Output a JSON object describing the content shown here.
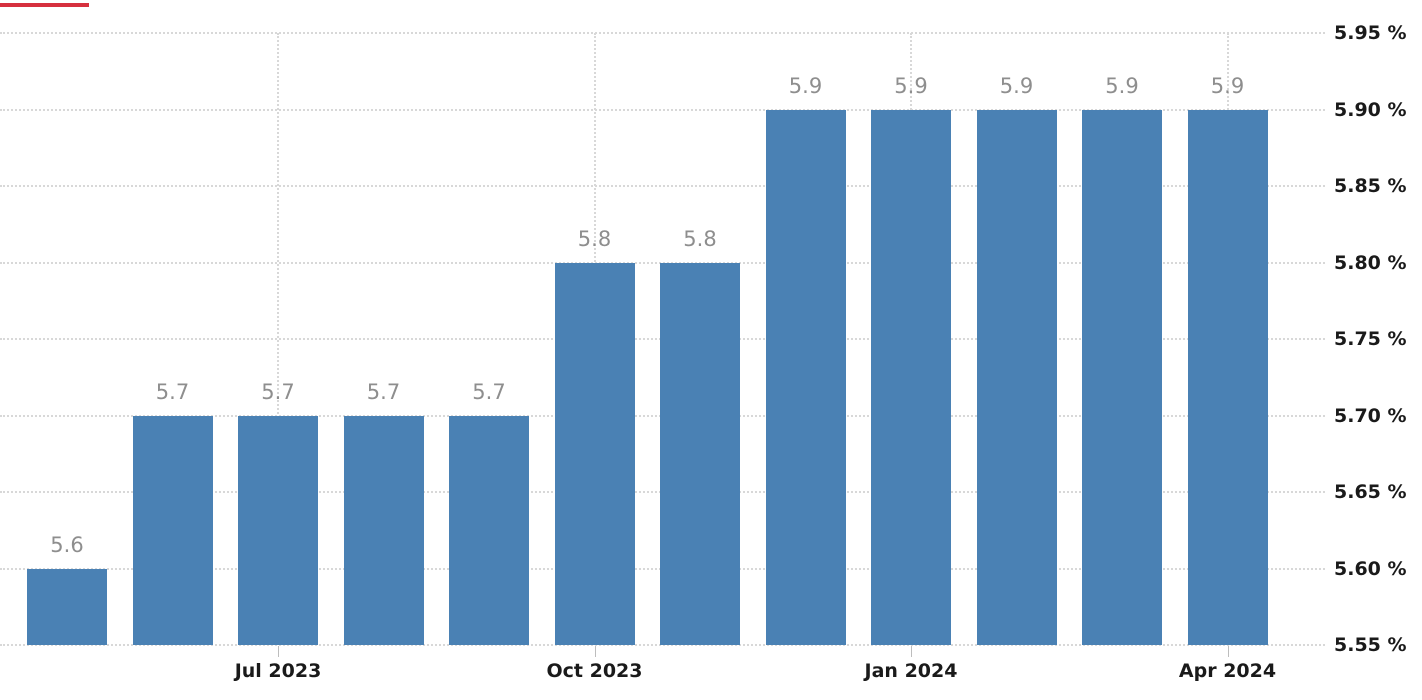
{
  "chart_data": {
    "type": "bar",
    "title": "",
    "categories": [
      "May 2023",
      "Jun 2023",
      "Jul 2023",
      "Aug 2023",
      "Sep 2023",
      "Oct 2023",
      "Nov 2023",
      "Dec 2023",
      "Jan 2024",
      "Feb 2024",
      "Mar 2024",
      "Apr 2024"
    ],
    "values": [
      5.6,
      5.7,
      5.7,
      5.7,
      5.7,
      5.8,
      5.8,
      5.9,
      5.9,
      5.9,
      5.9,
      5.9
    ],
    "bar_value_labels": [
      "5.6",
      "5.7",
      "5.7",
      "5.7",
      "5.7",
      "5.8",
      "5.8",
      "5.9",
      "5.9",
      "5.9",
      "5.9",
      "5.9"
    ],
    "unit": "%",
    "xlabel": "",
    "ylabel": "",
    "ylim": [
      5.55,
      5.95
    ],
    "y_axis": {
      "side": "right",
      "tick_values": [
        5.95,
        5.9,
        5.85,
        5.8,
        5.75,
        5.7,
        5.65,
        5.6,
        5.55
      ],
      "tick_labels": [
        "5.95 %",
        "5.90 %",
        "5.85 %",
        "5.80 %",
        "5.75 %",
        "5.70 %",
        "5.65 %",
        "5.60 %",
        "5.55 %"
      ]
    },
    "x_axis": {
      "tick_labels": [
        "Jul 2023",
        "Oct 2023",
        "Jan 2024",
        "Apr 2024"
      ],
      "tick_category_indices": [
        2,
        5,
        8,
        11
      ]
    },
    "grid": {
      "horizontal": true,
      "vertical_at_x_ticks": true,
      "style": "dotted"
    },
    "legend": {
      "visible": false
    },
    "colors": {
      "bar": "#4a81b4",
      "grid": "#d8d8d8",
      "axis_text": "#1a1a1a",
      "value_label_text": "#8e8e8e",
      "background": "#ffffff"
    }
  },
  "artifacts": {
    "top_left_red_line_color": "#d6303e"
  }
}
